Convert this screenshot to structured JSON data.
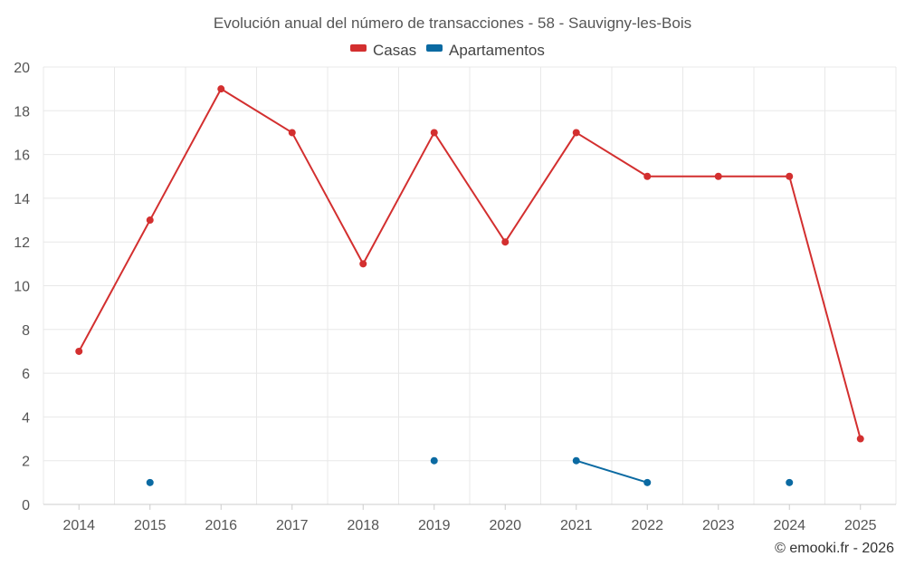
{
  "chart_data": {
    "type": "line",
    "title": "Evolución anual del número de transacciones - 58 - Sauvigny-les-Bois",
    "categories": [
      "2014",
      "2015",
      "2016",
      "2017",
      "2018",
      "2019",
      "2020",
      "2021",
      "2022",
      "2023",
      "2024",
      "2025"
    ],
    "ylim": [
      0,
      20
    ],
    "yticks": [
      0,
      2,
      4,
      6,
      8,
      10,
      12,
      14,
      16,
      18,
      20
    ],
    "grid": true,
    "legend_position": "top-center",
    "series": [
      {
        "name": "Casas",
        "color": "#d32f2f",
        "values": [
          7,
          13,
          19,
          17,
          11,
          17,
          12,
          17,
          15,
          15,
          15,
          3
        ]
      },
      {
        "name": "Apartamentos",
        "color": "#0b6aa2",
        "values": [
          null,
          1,
          null,
          null,
          null,
          2,
          null,
          2,
          1,
          null,
          1,
          null
        ]
      }
    ]
  },
  "credit": "© emooki.fr - 2026"
}
